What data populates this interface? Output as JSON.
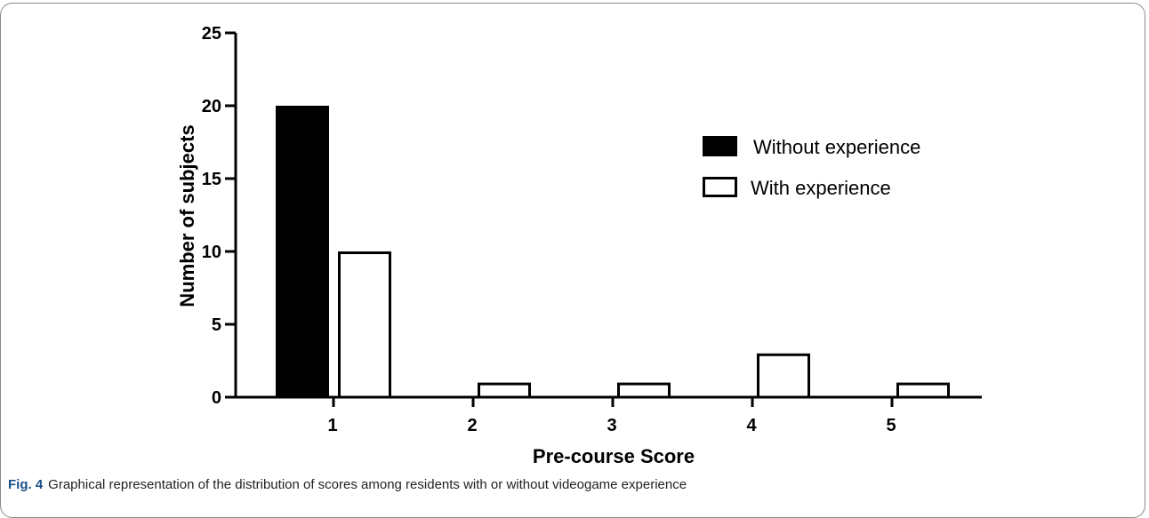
{
  "figure": {
    "label": "Fig. 4",
    "caption": "Graphical representation of the distribution of scores among residents with or without videogame experience"
  },
  "chart_data": {
    "type": "bar",
    "xlabel": "Pre-course Score",
    "ylabel": "Number of subjects",
    "categories": [
      "1",
      "2",
      "3",
      "4",
      "5"
    ],
    "ylim": [
      0,
      25
    ],
    "yticks": [
      0,
      5,
      10,
      15,
      20,
      25
    ],
    "legend_position": "top-right",
    "series": [
      {
        "name": "Without experience",
        "values": [
          20,
          0,
          0,
          0,
          0
        ],
        "fill": "#000000"
      },
      {
        "name": "With experience",
        "values": [
          10,
          1,
          1,
          3,
          1
        ],
        "fill": "#ffffff"
      }
    ]
  }
}
